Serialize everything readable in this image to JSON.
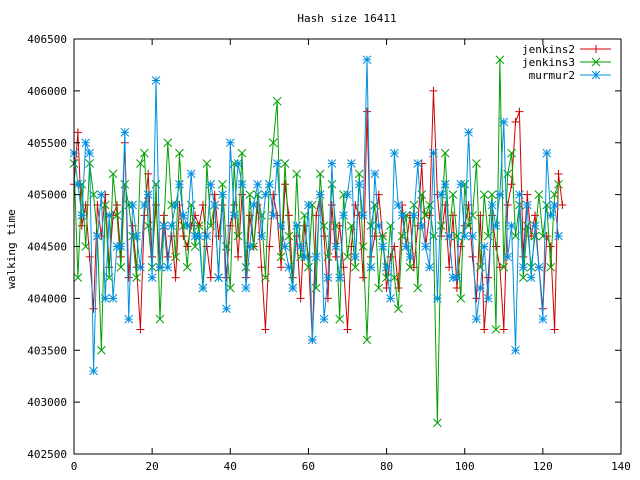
{
  "chart_data": {
    "type": "line",
    "title": "Hash size 16411",
    "xlabel": "",
    "ylabel": "walking time",
    "xlim": [
      0,
      140
    ],
    "ylim": [
      402500,
      406500
    ],
    "x_ticks": [
      0,
      20,
      40,
      60,
      80,
      100,
      120,
      140
    ],
    "y_ticks": [
      402500,
      403000,
      403500,
      404000,
      404500,
      405000,
      405500,
      406000,
      406500
    ],
    "grid": false,
    "legend": "top-right",
    "series": [
      {
        "name": "jenkins2",
        "color": "#d00000",
        "marker": "plus",
        "values": [
          405100,
          405600,
          404700,
          404900,
          404400,
          403900,
          404900,
          404600,
          405000,
          404300,
          404800,
          404900,
          404400,
          405500,
          404200,
          404700,
          404300,
          403700,
          404800,
          405200,
          404400,
          404900,
          404300,
          404800,
          404400,
          404600,
          404200,
          404900,
          404600,
          404500,
          404700,
          404800,
          404700,
          404900,
          404500,
          404200,
          405000,
          404600,
          404900,
          404200,
          404700,
          404900,
          404400,
          405000,
          404200,
          404800,
          404500,
          404900,
          404300,
          403700,
          404500,
          405000,
          404800,
          404300,
          405100,
          404800,
          404200,
          404600,
          404000,
          404700,
          404400,
          403600,
          404800,
          405000,
          404600,
          404000,
          404900,
          404400,
          404700,
          404300,
          403700,
          404500,
          404900,
          404800,
          404200,
          405800,
          404400,
          404600,
          405000,
          404600,
          404100,
          404400,
          404500,
          404100,
          404900,
          404500,
          404800,
          404300,
          404700,
          405300,
          404500,
          404800,
          406000,
          405000,
          404600,
          404900,
          404300,
          404800,
          404100,
          404500,
          404700,
          404900,
          404400,
          404000,
          404800,
          403700,
          404200,
          404800,
          404500,
          404300,
          403700,
          404900,
          405100,
          405700,
          405800,
          404400,
          405000,
          404600,
          404800,
          404300,
          403900,
          404600,
          404500,
          403700,
          405200,
          404900
        ]
      },
      {
        "name": "jenkins3",
        "color": "#00a000",
        "marker": "cross",
        "values": [
          405300,
          404200,
          405100,
          404500,
          405300,
          405000,
          404600,
          403500,
          404900,
          404200,
          405200,
          404800,
          404300,
          405100,
          404900,
          404600,
          404200,
          405300,
          405400,
          404700,
          404300,
          405100,
          403800,
          404700,
          405500,
          404900,
          404400,
          405400,
          404700,
          404300,
          404900,
          404500,
          404700,
          404100,
          405300,
          404700,
          404900,
          404200,
          405100,
          404500,
          404100,
          405300,
          404600,
          405400,
          404300,
          405000,
          404500,
          405000,
          404800,
          404200,
          405100,
          405500,
          405900,
          404400,
          405300,
          404600,
          404100,
          405200,
          404400,
          404800,
          404300,
          404900,
          404100,
          405200,
          404700,
          404400,
          405100,
          404700,
          403800,
          405000,
          404400,
          404700,
          404300,
          405200,
          404500,
          403600,
          404700,
          404900,
          404100,
          404600,
          404200,
          404700,
          404200,
          403900,
          404600,
          404800,
          404300,
          404900,
          404100,
          405000,
          404800,
          404900,
          404600,
          402800,
          404700,
          405400,
          404600,
          405000,
          404600,
          404000,
          405100,
          404700,
          404800,
          405300,
          404300,
          405000,
          404600,
          405000,
          403700,
          406300,
          404300,
          405200,
          405400,
          404600,
          404900,
          404200,
          404700,
          404300,
          404600,
          405000,
          404600,
          404900,
          404300,
          405000,
          405100
        ]
      },
      {
        "name": "murmur2",
        "color": "#0090e0",
        "marker": "star",
        "values": [
          405400,
          405100,
          404800,
          405500,
          405400,
          403300,
          404600,
          405000,
          404000,
          404800,
          404000,
          404500,
          404500,
          405600,
          403800,
          404900,
          404600,
          404300,
          404900,
          405000,
          404200,
          406100,
          404300,
          404700,
          404300,
          404700,
          404900,
          405100,
          404800,
          404700,
          405200,
          404600,
          404600,
          404100,
          404600,
          405100,
          404900,
          404200,
          405000,
          403900,
          405500,
          404800,
          405300,
          405100,
          404100,
          404500,
          404900,
          405100,
          404600,
          405000,
          405100,
          404800,
          405300,
          404700,
          404500,
          404300,
          404100,
          404700,
          404500,
          404400,
          404900,
          403600,
          404400,
          405000,
          403800,
          404200,
          405300,
          404500,
          404200,
          404800,
          405000,
          405300,
          404400,
          405100,
          404800,
          406300,
          404300,
          405200,
          404700,
          404500,
          404300,
          404000,
          405400,
          404900,
          404800,
          404500,
          404400,
          404800,
          405300,
          404700,
          404500,
          404300,
          405400,
          404000,
          405000,
          405100,
          404600,
          404200,
          404200,
          405100,
          404600,
          405600,
          404600,
          403800,
          404100,
          404500,
          404000,
          404900,
          404700,
          405000,
          405700,
          404400,
          404700,
          403500,
          405000,
          404300,
          404900,
          404200,
          404700,
          404300,
          403800,
          405400,
          404800,
          404900,
          404600
        ]
      }
    ]
  }
}
